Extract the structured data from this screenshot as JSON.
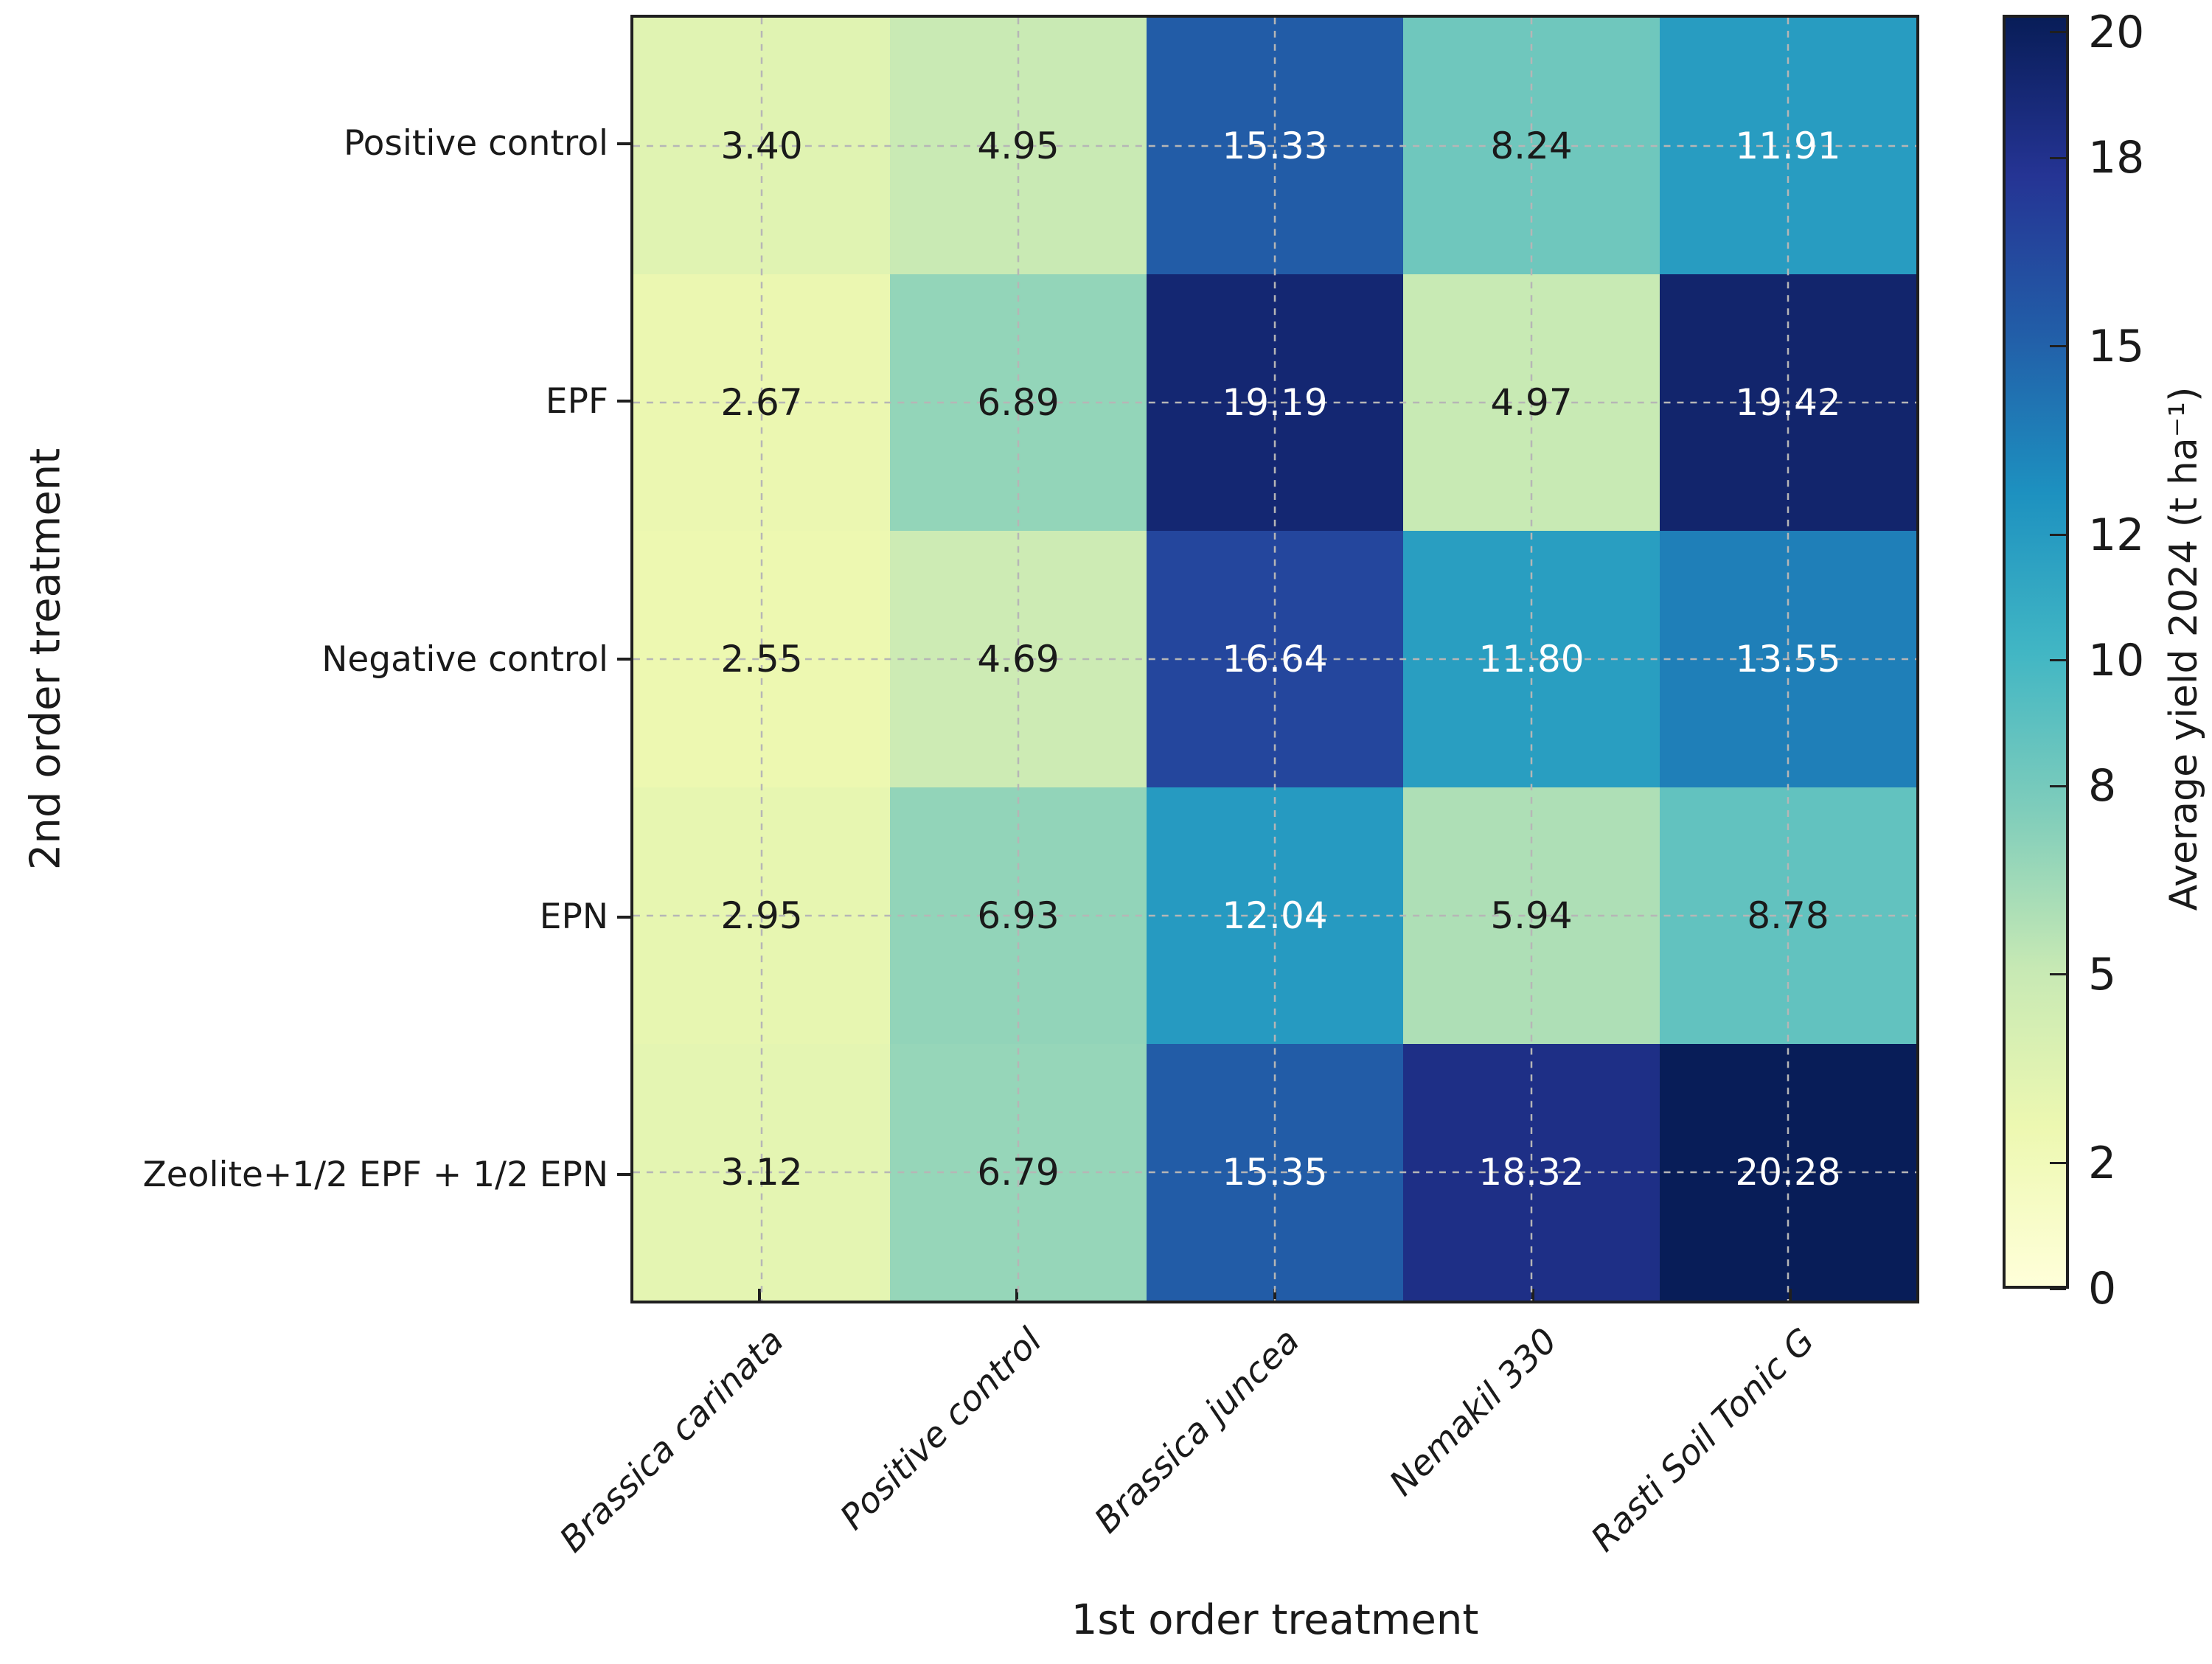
{
  "chart_data": {
    "type": "heatmap",
    "title": "",
    "xlabel": "1st order treatment",
    "ylabel": "2nd order treatment",
    "x_categories": [
      "Brassica carinata",
      "Positive control",
      "Brassica juncea",
      "Nemakil 330",
      "Rasti Soil Tonic G"
    ],
    "y_categories": [
      "Positive control",
      "EPF",
      "Negative control",
      "EPN",
      "Zeolite+1/2 EPF + 1/2 EPN"
    ],
    "values": [
      [
        3.4,
        4.95,
        15.33,
        8.24,
        11.91
      ],
      [
        2.67,
        6.89,
        19.19,
        4.97,
        19.42
      ],
      [
        2.55,
        4.69,
        16.64,
        11.8,
        13.55
      ],
      [
        2.95,
        6.93,
        12.04,
        5.94,
        8.78
      ],
      [
        3.12,
        6.79,
        15.35,
        18.32,
        20.28
      ]
    ],
    "value_decimals": 2,
    "vmin": 0,
    "vmax": 20.28,
    "colormap": "YlGnBu",
    "colormap_anchors": [
      "#ffffd9",
      "#edf8b1",
      "#c7e9b4",
      "#7fcdbb",
      "#41b6c4",
      "#1d91c0",
      "#225ea8",
      "#253494",
      "#081d58"
    ],
    "grid": true,
    "grid_style": "dashed-at-cell-centers",
    "grid_color": "#b6b6b6",
    "annotation_color_dark": "#1a1a1a",
    "annotation_color_light": "#ffffff",
    "axis_color": "#1f1f1f",
    "colorbar": {
      "label": "Average yield 2024 (t ha⁻¹)",
      "ticks": [
        20,
        18,
        15,
        12,
        10,
        8,
        5,
        2,
        0
      ],
      "position": "right"
    }
  }
}
